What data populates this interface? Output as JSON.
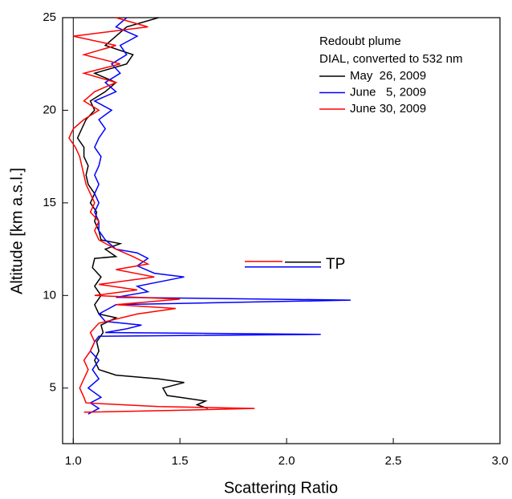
{
  "chart_data": {
    "type": "line",
    "xlabel": "Scattering Ratio",
    "ylabel": "Altitude [km a.s.l.]",
    "xlim": [
      0.95,
      3.0
    ],
    "ylim": [
      2,
      25
    ],
    "xticks": [
      {
        "value": 1,
        "label": "1.0"
      },
      {
        "value": 1.5,
        "label": "1.5"
      },
      {
        "value": 2,
        "label": "2.0"
      },
      {
        "value": 2.5,
        "label": "2.5"
      },
      {
        "value": 3,
        "label": "3.0"
      }
    ],
    "yticks": [
      5,
      10,
      15,
      20,
      25
    ],
    "vline": 1,
    "legend_title": [
      "Redoubt plume",
      "DIAL, converted to 532 nm"
    ],
    "legend_position": "upper right",
    "tp_label": "TP",
    "series": [
      {
        "name": "May  26, 2009",
        "color": "#000000",
        "tp": 11.8,
        "x": [
          1.63,
          1.58,
          1.62,
          1.5,
          1.44,
          1.42,
          1.52,
          1.4,
          1.2,
          1.12,
          1.1,
          1.12,
          1.11,
          1.14,
          1.13,
          1.2,
          1.12,
          1.1,
          1.13,
          1.1,
          1.13,
          1.09,
          1.1,
          1.2,
          1.15,
          1.22,
          1.13,
          1.12,
          1.1,
          1.11,
          1.08,
          1.1,
          1.07,
          1.06,
          1.07,
          1.05,
          1.05,
          1.02,
          1.04,
          1.06,
          1.1,
          1.08,
          1.15,
          1.2,
          1.1,
          1.25,
          1.28,
          1.15,
          1.2,
          1.25,
          1.4
        ],
        "y": [
          3.9,
          4.1,
          4.3,
          4.5,
          4.6,
          5.0,
          5.3,
          5.5,
          5.7,
          6.0,
          6.5,
          7.0,
          7.5,
          8.0,
          8.4,
          8.8,
          9.0,
          9.5,
          10.0,
          10.5,
          11.0,
          11.5,
          12.0,
          12.1,
          12.5,
          12.8,
          13,
          13.5,
          14,
          14.5,
          15,
          15.5,
          16,
          16.5,
          17,
          17.5,
          18,
          18.5,
          19,
          19.5,
          20,
          20.5,
          21,
          21.5,
          22,
          22.5,
          23,
          23.5,
          24,
          24.5,
          25
        ]
      },
      {
        "name": "June   5, 2009",
        "color": "#0000ff",
        "tp": 11.54,
        "x": [
          1.07,
          1.12,
          1.08,
          1.13,
          1.07,
          1.12,
          1.09,
          1.12,
          1.08,
          1.1,
          1.12,
          2.16,
          1.15,
          1.25,
          1.32,
          1.15,
          1.12,
          1.2,
          2.3,
          1.2,
          1.35,
          1.3,
          1.52,
          1.38,
          1.3,
          1.35,
          1.3,
          1.2,
          1.15,
          1.12,
          1.12,
          1.1,
          1.12,
          1.1,
          1.12,
          1.1,
          1.12,
          1.13,
          1.1,
          1.12,
          1.15,
          1.12,
          1.18,
          1.1,
          1.2,
          1.15,
          1.22,
          1.18,
          1.25,
          1.22,
          1.3,
          1.2,
          1.25
        ],
        "y": [
          3.6,
          3.9,
          4.2,
          4.5,
          5,
          5.5,
          6,
          6.5,
          7,
          7.5,
          7.8,
          7.9,
          8.0,
          8.2,
          8.4,
          8.6,
          9.0,
          9.5,
          9.75,
          9.9,
          10.2,
          10.5,
          11.0,
          11.2,
          11.6,
          12.0,
          12.3,
          12.5,
          13,
          13.5,
          14,
          14.5,
          15,
          15.5,
          16,
          16.5,
          17,
          17.5,
          18,
          18.5,
          19,
          19.5,
          20,
          20.5,
          21,
          21.5,
          22,
          22.5,
          23,
          23.5,
          24,
          24.5,
          25
        ]
      },
      {
        "name": "June 30, 2009",
        "color": "#ff0000",
        "tp": 11.84,
        "x": [
          1.05,
          1.5,
          1.85,
          1.4,
          1.06,
          1.05,
          1.03,
          1.05,
          1.07,
          1.05,
          1.08,
          1.1,
          1.08,
          1.12,
          1.3,
          1.48,
          1.2,
          1.5,
          1.1,
          1.3,
          1.12,
          1.38,
          1.2,
          1.35,
          1.28,
          1.2,
          1.12,
          1.1,
          1.12,
          1.08,
          1.1,
          1.08,
          1.06,
          1.05,
          1.04,
          1.03,
          1.01,
          0.98,
          1.0,
          1.05,
          1.12,
          1.05,
          1.1,
          1.2,
          1.05,
          1.22,
          1.05,
          1.2,
          1.0,
          1.35,
          1.2
        ],
        "y": [
          3.7,
          3.8,
          3.9,
          4.0,
          4.2,
          4.5,
          5,
          5.5,
          6,
          6.5,
          7,
          7.5,
          8,
          8.5,
          9.0,
          9.3,
          9.5,
          9.8,
          10,
          10.3,
          10.6,
          11.0,
          11.4,
          11.7,
          12.1,
          12.5,
          13,
          13.5,
          14,
          14.5,
          15,
          15.5,
          16,
          16.5,
          17,
          17.5,
          18,
          18.5,
          19,
          19.5,
          20,
          20.5,
          21,
          21.5,
          22,
          22.5,
          23,
          23.5,
          24,
          24.5,
          25
        ]
      }
    ]
  }
}
